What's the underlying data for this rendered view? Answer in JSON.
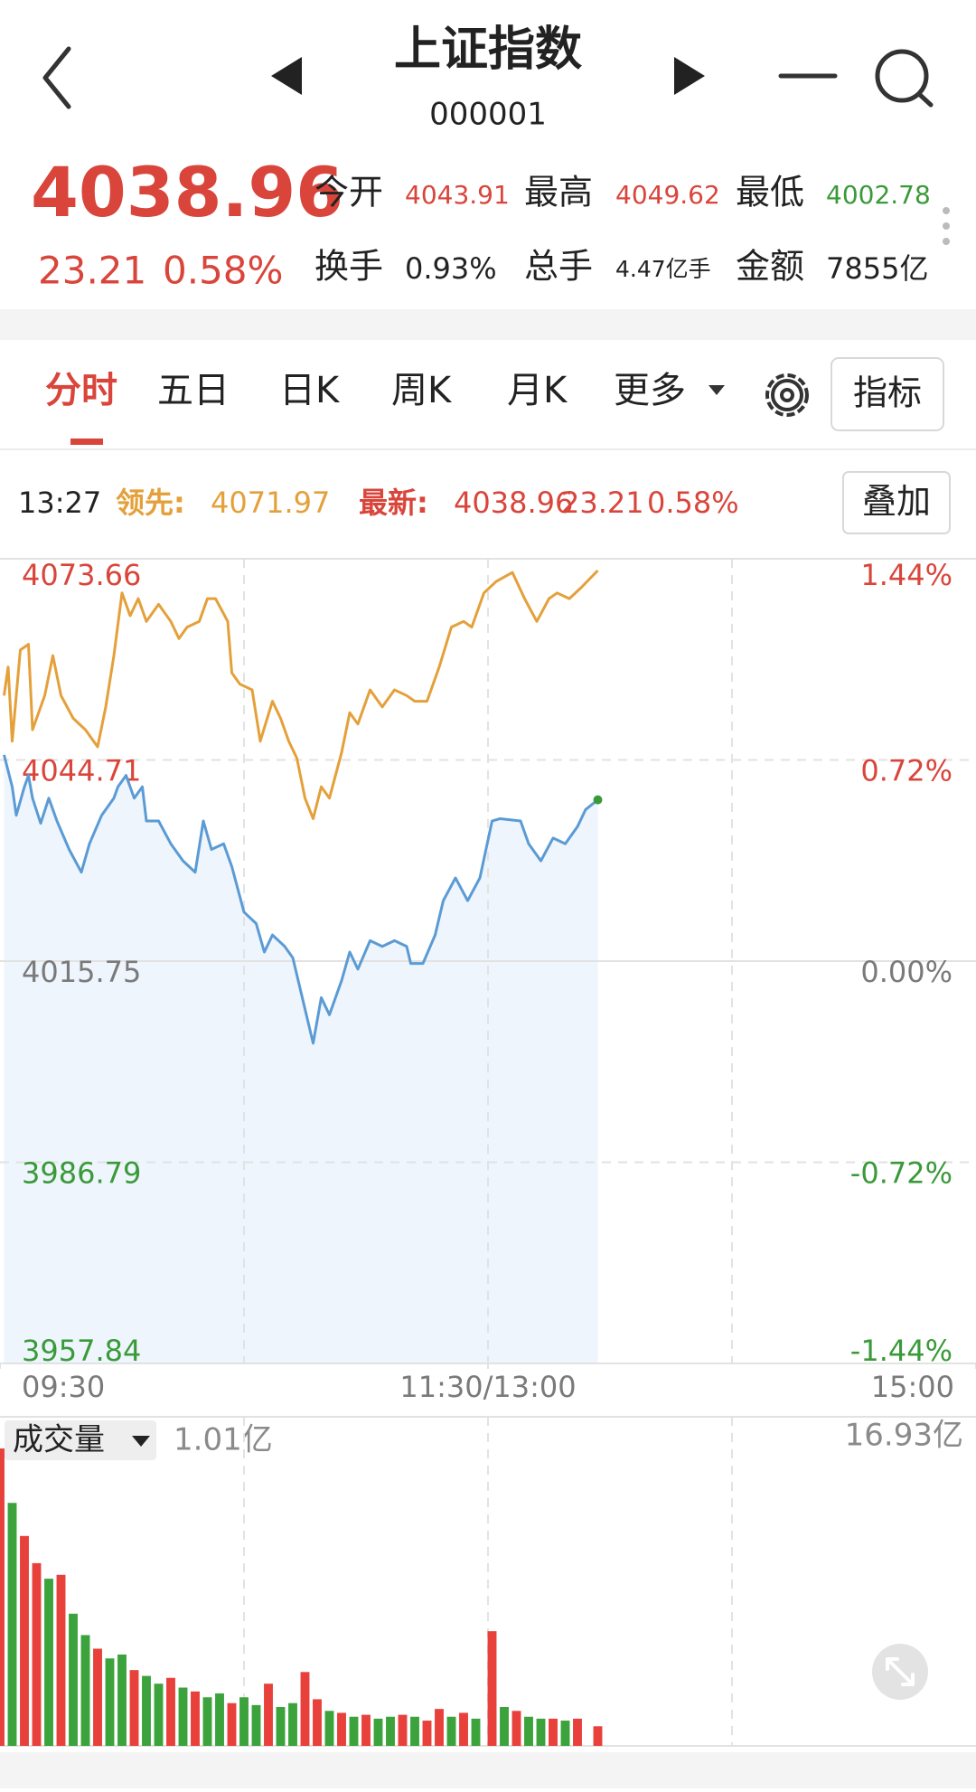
{
  "header": {
    "title": "上证指数",
    "code": "000001"
  },
  "quote": {
    "price": "4038.96",
    "change": "23.21",
    "change_pct": "0.58%",
    "stats": [
      {
        "label": "今开",
        "value": "4043.91"
      },
      {
        "label": "最高",
        "value": "4049.62"
      },
      {
        "label": "最低",
        "value": "4002.78"
      },
      {
        "label": "换手",
        "value": "0.93%"
      },
      {
        "label": "总手",
        "value": "4.47亿手"
      },
      {
        "label": "金额",
        "value": "7855亿"
      }
    ]
  },
  "tabs": [
    "分时",
    "五日",
    "日K",
    "周K",
    "月K",
    "更多"
  ],
  "indicator_button": "指标",
  "info_bar": {
    "time": "13:27",
    "lead_label": "领先:",
    "lead_value": "4071.97",
    "latest_label": "最新:",
    "latest_value": "4038.96",
    "latest_change": "23.21",
    "latest_pct": "0.58%"
  },
  "overlay_button": "叠加",
  "volume_panel": {
    "selector": "成交量",
    "current": "1.01亿"
  },
  "chart_data": [
    {
      "type": "line",
      "xlim": [
        0,
        240
      ],
      "xticks": [
        {
          "value": 0,
          "label": "09:30"
        },
        {
          "value": 120,
          "label": "11:30/13:00"
        },
        {
          "value": 240,
          "label": "15:00"
        }
      ],
      "xgrid": [
        60,
        120,
        180
      ],
      "ylim": [
        3957.84,
        4073.66
      ],
      "yticks": [
        4073.66,
        4044.71,
        4015.75,
        3986.79,
        3957.84
      ],
      "y2lim": [
        -1.44,
        1.44
      ],
      "y2ticks": [
        {
          "value": 1.44,
          "label": "1.44%"
        },
        {
          "value": 0.72,
          "label": "0.72%"
        },
        {
          "value": 0,
          "label": "0.00%"
        },
        {
          "value": -0.72,
          "label": "-0.72%"
        },
        {
          "value": -1.44,
          "label": "-1.44%"
        }
      ],
      "tick_colors": {
        "up": "#d9453b",
        "flat": "#7a7a7a",
        "down": "#3a9a3a"
      },
      "grid": true,
      "series": [
        {
          "color": "#5b9bd5",
          "area_color": "#eef5fc",
          "end_dot_color": "#3a9a3a",
          "x": [
            1,
            3,
            4,
            6,
            7,
            8,
            10,
            12,
            14,
            17,
            20,
            22,
            25,
            28,
            29,
            31,
            33,
            35,
            36,
            39,
            42,
            45,
            48,
            50,
            52,
            55,
            57,
            60,
            63,
            65,
            67,
            70,
            72,
            74,
            77,
            79,
            81,
            84,
            86,
            88,
            91,
            94,
            97,
            100,
            101,
            104,
            107,
            109,
            112,
            115,
            118,
            121,
            123,
            128,
            130,
            133,
            136,
            139,
            142,
            144,
            147
          ],
          "values": [
            4045.44,
            4040.84,
            4036.74,
            4040.84,
            4042.48,
            4039.2,
            4035.59,
            4039.2,
            4035.92,
            4031.82,
            4028.54,
            4032.64,
            4036.74,
            4039.2,
            4040.84,
            4042.48,
            4039.2,
            4040.84,
            4035.92,
            4035.92,
            4032.64,
            4030.18,
            4028.54,
            4035.92,
            4031.82,
            4032.64,
            4029.36,
            4022.8,
            4021.15,
            4017.05,
            4019.51,
            4017.87,
            4016.23,
            4011.31,
            4003.93,
            4010.49,
            4008.03,
            4012.95,
            4017.05,
            4014.59,
            4018.69,
            4017.87,
            4018.69,
            4017.87,
            4015.41,
            4015.41,
            4019.51,
            4024.44,
            4027.72,
            4024.44,
            4027.72,
            4035.92,
            4036.25,
            4035.92,
            4032.64,
            4030.18,
            4033.46,
            4032.64,
            4035.1,
            4037.56,
            4038.96
          ]
        },
        {
          "color": "#e4a03a",
          "x": [
            1,
            2,
            3,
            5,
            7,
            8,
            11,
            13,
            15,
            18,
            21,
            24,
            26,
            28,
            30,
            32,
            34,
            36,
            39,
            42,
            44,
            46,
            49,
            51,
            53,
            56,
            57,
            59,
            62,
            64,
            67,
            69,
            71,
            73,
            75,
            77,
            79,
            81,
            84,
            86,
            88,
            91,
            94,
            97,
            100,
            102,
            105,
            108,
            111,
            114,
            116,
            119,
            122,
            126,
            129,
            132,
            135,
            137,
            140,
            143,
            147
          ],
          "values": [
            4053.97,
            4058.07,
            4047.41,
            4060.53,
            4061.35,
            4049.05,
            4053.97,
            4059.71,
            4053.97,
            4050.69,
            4049.05,
            4046.59,
            4052.33,
            4059.71,
            4068.74,
            4065.46,
            4067.92,
            4064.64,
            4067.1,
            4064.64,
            4062.17,
            4063.82,
            4064.64,
            4067.92,
            4067.92,
            4064.64,
            4057.25,
            4055.61,
            4054.79,
            4047.41,
            4053.15,
            4050.69,
            4047.41,
            4044.95,
            4039.2,
            4036.25,
            4040.84,
            4039.2,
            4045.77,
            4051.51,
            4049.87,
            4054.79,
            4052.33,
            4054.79,
            4053.97,
            4053.15,
            4053.15,
            4058.07,
            4063.82,
            4064.64,
            4063.82,
            4068.74,
            4070.38,
            4071.69,
            4067.92,
            4064.64,
            4067.92,
            4068.74,
            4067.92,
            4069.56,
            4071.97
          ]
        }
      ]
    },
    {
      "type": "bar",
      "xlim": [
        0,
        240
      ],
      "ylim": [
        0,
        16.93
      ],
      "yticks": [
        {
          "value": 16.93,
          "label": "16.93亿"
        }
      ],
      "x": [
        0,
        3,
        6,
        9,
        12,
        15,
        18,
        21,
        24,
        27,
        30,
        33,
        36,
        39,
        42,
        45,
        48,
        51,
        54,
        57,
        60,
        63,
        66,
        69,
        72,
        75,
        78,
        81,
        84,
        87,
        90,
        93,
        96,
        99,
        102,
        105,
        108,
        111,
        114,
        117,
        121,
        124,
        127,
        130,
        133,
        136,
        139,
        142,
        147
      ],
      "values": [
        15.3,
        12.5,
        10.8,
        9.4,
        8.6,
        8.8,
        6.8,
        5.7,
        5.0,
        4.5,
        4.7,
        3.9,
        3.6,
        3.2,
        3.5,
        3.0,
        2.8,
        2.5,
        2.7,
        2.2,
        2.5,
        2.1,
        3.2,
        2.0,
        2.2,
        3.8,
        2.4,
        1.8,
        1.7,
        1.5,
        1.6,
        1.4,
        1.5,
        1.6,
        1.5,
        1.3,
        1.9,
        1.5,
        1.7,
        1.4,
        5.9,
        2.0,
        1.8,
        1.5,
        1.4,
        1.4,
        1.3,
        1.4,
        1.01
      ],
      "colors": [
        "#e8413c",
        "#3ca33c",
        "#e8413c",
        "#e8413c",
        "#3ca33c",
        "#e8413c",
        "#3ca33c",
        "#3ca33c",
        "#e8413c",
        "#3ca33c",
        "#3ca33c",
        "#e8413c",
        "#3ca33c",
        "#3ca33c",
        "#e8413c",
        "#3ca33c",
        "#e8413c",
        "#3ca33c",
        "#3ca33c",
        "#e8413c",
        "#3ca33c",
        "#3ca33c",
        "#e8413c",
        "#3ca33c",
        "#3ca33c",
        "#e8413c",
        "#e8413c",
        "#3ca33c",
        "#e8413c",
        "#3ca33c",
        "#e8413c",
        "#3ca33c",
        "#3ca33c",
        "#e8413c",
        "#3ca33c",
        "#e8413c",
        "#e8413c",
        "#3ca33c",
        "#e8413c",
        "#3ca33c",
        "#e8413c",
        "#3ca33c",
        "#e8413c",
        "#3ca33c",
        "#3ca33c",
        "#e8413c",
        "#3ca33c",
        "#e8413c",
        "#e8413c"
      ]
    }
  ]
}
